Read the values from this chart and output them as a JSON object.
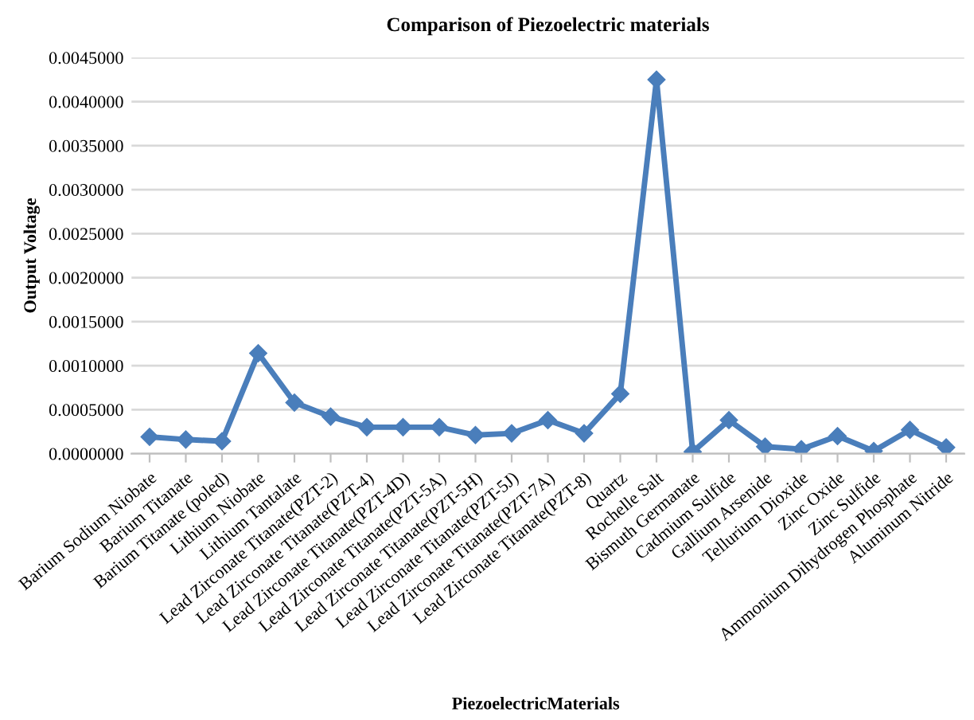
{
  "chart_data": {
    "type": "line",
    "title": "Comparison of Piezoelectric materials",
    "xlabel": "PiezoelectricMaterials",
    "ylabel": "Output Voltage",
    "categories": [
      "Barium Sodium Niobate",
      "Barium Titanate",
      "Barium Titanate (poled)",
      "Lithium Niobate",
      "Lithium Tantalate",
      "Lead Zirconate Titanate(PZT-2)",
      "Lead Zirconate Titanate(PZT-4)",
      "Lead Zirconate Titanate(PZT-4D)",
      "Lead Zirconate Titanate(PZT-5A)",
      "Lead Zirconate Titanate(PZT-5H)",
      "Lead Zirconate Titanate(PZT-5J)",
      "Lead Zirconate Titanate(PZT-7A)",
      "Lead Zirconate Titanate(PZT-8)",
      "Quartz",
      "Rochelle Salt",
      "Bismuth Germanate",
      "Cadmium Sulfide",
      "Gallium Arsenide",
      "Tellurium Dioxide",
      "Zinc Oxide",
      "Zinc Sulfide",
      "Ammonium Dihydrogen Phosphate",
      "Aluminum Nitride"
    ],
    "series": [
      {
        "color": "#4a7ebb",
        "values": [
          0.00019,
          0.00016,
          0.00014,
          0.00114,
          0.00058,
          0.00042,
          0.0003,
          0.0003,
          0.0003,
          0.00021,
          0.00023,
          0.00038,
          0.00023,
          0.00068,
          0.00425,
          2e-05,
          0.00038,
          8e-05,
          5e-05,
          0.0002,
          3e-05,
          0.00027,
          7e-05
        ]
      }
    ],
    "ylim": [
      0,
      0.0045
    ],
    "yticks": [
      {
        "value": 0,
        "label": "0.0000000"
      },
      {
        "value": 0.0005,
        "label": "0.0005000"
      },
      {
        "value": 0.001,
        "label": "0.0010000"
      },
      {
        "value": 0.0015,
        "label": "0.0015000"
      },
      {
        "value": 0.002,
        "label": "0.0020000"
      },
      {
        "value": 0.0025,
        "label": "0.0025000"
      },
      {
        "value": 0.003,
        "label": "0.0030000"
      },
      {
        "value": 0.0035,
        "label": "0.0035000"
      },
      {
        "value": 0.004,
        "label": "0.0040000"
      },
      {
        "value": 0.0045,
        "label": "0.0045000"
      }
    ],
    "grid": "y",
    "marker": "diamond",
    "line_style": "solid",
    "legend": false
  }
}
